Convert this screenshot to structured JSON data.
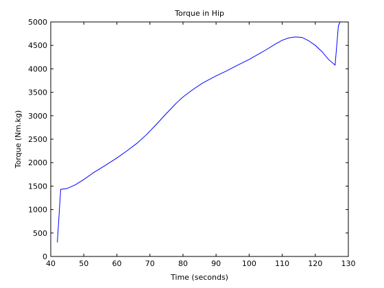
{
  "chart_data": {
    "type": "line",
    "title": "Torque in Hip",
    "xlabel": "Time (seconds)",
    "ylabel": "Torque (Nm.kg)",
    "xlim": [
      40,
      130
    ],
    "ylim": [
      0,
      5000
    ],
    "xticks": [
      40,
      50,
      60,
      70,
      80,
      90,
      100,
      110,
      120,
      130
    ],
    "yticks": [
      0,
      500,
      1000,
      1500,
      2000,
      2500,
      3000,
      3500,
      4000,
      4500,
      5000
    ],
    "grid": false,
    "legend": "none",
    "series": [
      {
        "color": "#0000ff",
        "x": [
          42.0,
          43.0,
          45.0,
          47.5,
          50.0,
          53.0,
          56.0,
          60.0,
          63.0,
          66.0,
          69.0,
          72.0,
          75.0,
          78.0,
          80.0,
          83.0,
          86.0,
          90.0,
          93.0,
          96.0,
          100.0,
          102.0,
          105.0,
          108.0,
          110.0,
          112.0,
          114.0,
          116.0,
          118.0,
          120.0,
          122.0,
          124.0,
          126.0,
          127.0,
          127.5
        ],
        "y": [
          300,
          1430,
          1450,
          1530,
          1640,
          1790,
          1920,
          2100,
          2250,
          2410,
          2600,
          2820,
          3050,
          3270,
          3400,
          3560,
          3700,
          3850,
          3950,
          4060,
          4200,
          4280,
          4400,
          4530,
          4610,
          4660,
          4680,
          4670,
          4600,
          4500,
          4370,
          4200,
          4080,
          4920,
          5000
        ]
      }
    ]
  }
}
